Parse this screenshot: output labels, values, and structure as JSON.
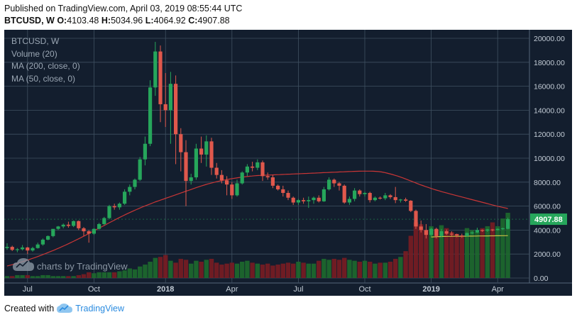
{
  "header": {
    "published": "Published on TradingView.com, April 03, 2019 08:55:44 UTC",
    "symbol": "BTCUSD, W",
    "o_label": "O:",
    "o_value": "4103.48",
    "h_label": "H:",
    "h_value": "5034.96",
    "l_label": "L:",
    "l_value": "4064.92",
    "c_label": "C:",
    "c_value": "4907.88"
  },
  "legend": {
    "symbol": "BTCUSD, W",
    "volume": "Volume (20)",
    "ma200": "MA (200, close, 0)",
    "ma50": "MA (50, close, 0)"
  },
  "watermark": "charts by TradingView",
  "footer": {
    "created_with": "Created with",
    "brand": "TradingView"
  },
  "colors": {
    "background": "#131e2e",
    "up": "#26a65b",
    "down": "#e0584c",
    "volume_up": "#1e6a2e",
    "volume_down": "#7a1c22",
    "ma200": "#c93636",
    "ma50": "#c9c046",
    "grid": "#3f5061",
    "price_tag": "#26a65b"
  },
  "chart_data": {
    "type": "candlestick",
    "interval": "weekly",
    "price_label": "4907.88",
    "y_ticks": [
      "20000.00",
      "18000.00",
      "16000.00",
      "14000.00",
      "12000.00",
      "10000.00",
      "8000.00",
      "6000.00",
      "4000.00",
      "2000.00",
      "0.00"
    ],
    "x_ticks": [
      "Jul",
      "Oct",
      "2018",
      "Apr",
      "Jul",
      "Oct",
      "2019",
      "Apr"
    ],
    "ylim": [
      0,
      20000
    ],
    "grid": true,
    "candles": [
      [
        2500,
        2900,
        2350,
        2600
      ],
      [
        2600,
        2700,
        2250,
        2350
      ],
      [
        2350,
        2500,
        2150,
        2400
      ],
      [
        2400,
        2750,
        2300,
        2550
      ],
      [
        2550,
        2600,
        2000,
        2300
      ],
      [
        2300,
        2600,
        2200,
        2500
      ],
      [
        2500,
        2950,
        2450,
        2800
      ],
      [
        2800,
        3300,
        2700,
        3200
      ],
      [
        3200,
        3550,
        3150,
        3500
      ],
      [
        3500,
        4000,
        3400,
        4100
      ],
      [
        4100,
        4350,
        4000,
        4300
      ],
      [
        4300,
        4550,
        4150,
        4450
      ],
      [
        4450,
        4700,
        4200,
        4350
      ],
      [
        4350,
        4800,
        4250,
        4750
      ],
      [
        4750,
        4800,
        4000,
        4150
      ],
      [
        4150,
        4250,
        3500,
        3900
      ],
      [
        3900,
        4000,
        2950,
        3700
      ],
      [
        3700,
        4150,
        3600,
        4100
      ],
      [
        4100,
        4600,
        4050,
        4500
      ],
      [
        4500,
        5100,
        4400,
        5000
      ],
      [
        5000,
        6100,
        4900,
        6000
      ],
      [
        6000,
        6200,
        5700,
        5900
      ],
      [
        5900,
        6300,
        5700,
        6200
      ],
      [
        6200,
        7400,
        6100,
        7200
      ],
      [
        7200,
        7800,
        6900,
        7600
      ],
      [
        7600,
        8300,
        7400,
        8200
      ],
      [
        8200,
        10100,
        8100,
        9900
      ],
      [
        9900,
        11800,
        9400,
        11200
      ],
      [
        11200,
        16500,
        11000,
        15900
      ],
      [
        15900,
        19700,
        15200,
        18900
      ],
      [
        18900,
        19400,
        13000,
        14500
      ],
      [
        14500,
        17100,
        12600,
        14000
      ],
      [
        14000,
        17200,
        11200,
        16200
      ],
      [
        16200,
        16900,
        9500,
        12000
      ],
      [
        12000,
        12500,
        8900,
        10500
      ],
      [
        10500,
        11500,
        6000,
        8100
      ],
      [
        8100,
        8700,
        7800,
        8400
      ],
      [
        8400,
        11200,
        8200,
        10800
      ],
      [
        10800,
        11800,
        9600,
        10300
      ],
      [
        10300,
        11900,
        9300,
        11400
      ],
      [
        11400,
        11700,
        8600,
        9200
      ],
      [
        9200,
        9600,
        8300,
        8600
      ],
      [
        8600,
        9000,
        7900,
        8150
      ],
      [
        8150,
        8500,
        6900,
        7800
      ],
      [
        7800,
        8000,
        6600,
        6900
      ],
      [
        6900,
        8200,
        6800,
        7900
      ],
      [
        7900,
        8900,
        7800,
        8800
      ],
      [
        8800,
        9500,
        8500,
        9300
      ],
      [
        9300,
        9700,
        8900,
        9200
      ],
      [
        9200,
        9900,
        9000,
        9650
      ],
      [
        9650,
        9800,
        8100,
        8500
      ],
      [
        8500,
        8800,
        8200,
        8400
      ],
      [
        8400,
        8600,
        7500,
        7700
      ],
      [
        7700,
        7800,
        7300,
        7400
      ],
      [
        7400,
        7700,
        6800,
        7100
      ],
      [
        7100,
        7300,
        6500,
        6700
      ],
      [
        6700,
        6800,
        6100,
        6300
      ],
      [
        6300,
        6600,
        6100,
        6500
      ],
      [
        6500,
        6700,
        6200,
        6400
      ],
      [
        6400,
        6800,
        5850,
        6500
      ],
      [
        6500,
        6800,
        6200,
        6700
      ],
      [
        6700,
        6900,
        6300,
        6400
      ],
      [
        6400,
        7600,
        6350,
        7400
      ],
      [
        7400,
        8400,
        7300,
        8200
      ],
      [
        8200,
        8300,
        7600,
        7900
      ],
      [
        7900,
        8000,
        7300,
        7700
      ],
      [
        7700,
        7800,
        6200,
        6300
      ],
      [
        6300,
        6800,
        6100,
        6600
      ],
      [
        6600,
        7500,
        6400,
        7300
      ],
      [
        7300,
        7400,
        6800,
        7000
      ],
      [
        7000,
        7200,
        6800,
        7100
      ],
      [
        7100,
        7200,
        6300,
        6500
      ],
      [
        6500,
        6800,
        6400,
        6700
      ],
      [
        6700,
        6800,
        6550,
        6650
      ],
      [
        6650,
        7100,
        6500,
        6900
      ],
      [
        6900,
        7000,
        6600,
        6750
      ],
      [
        6750,
        7600,
        6250,
        6500
      ],
      [
        6500,
        6600,
        6300,
        6550
      ],
      [
        6550,
        6700,
        6350,
        6450
      ],
      [
        6450,
        6500,
        5500,
        5600
      ],
      [
        5600,
        5700,
        4100,
        4300
      ],
      [
        4300,
        4800,
        3800,
        4000
      ],
      [
        4000,
        4500,
        3300,
        3600
      ],
      [
        3600,
        4200,
        3450,
        4100
      ],
      [
        4100,
        4200,
        3300,
        3500
      ],
      [
        3500,
        4100,
        3400,
        3900
      ],
      [
        3900,
        4050,
        3600,
        3700
      ],
      [
        3700,
        3900,
        3500,
        3650
      ],
      [
        3650,
        3700,
        3400,
        3550
      ],
      [
        3550,
        3700,
        3350,
        3500
      ],
      [
        3500,
        3800,
        3450,
        3750
      ],
      [
        3750,
        3900,
        3650,
        3800
      ],
      [
        3800,
        4200,
        3750,
        4000
      ],
      [
        4000,
        4050,
        3850,
        3950
      ],
      [
        3950,
        4100,
        3850,
        4050
      ],
      [
        4050,
        4100,
        3900,
        4000
      ],
      [
        4000,
        4150,
        3950,
        4100
      ],
      [
        4100,
        4200,
        4000,
        4150
      ],
      [
        4103.48,
        5034.96,
        4064.92,
        4907.88
      ]
    ],
    "volume": [
      2,
      2,
      3,
      3,
      3,
      2,
      2,
      3,
      3,
      2,
      2,
      2,
      2,
      2,
      3,
      4,
      6,
      5,
      6,
      6,
      6,
      6,
      7,
      8,
      10,
      9,
      12,
      14,
      17,
      21,
      22,
      24,
      18,
      16,
      20,
      19,
      15,
      18,
      17,
      19,
      20,
      16,
      14,
      15,
      16,
      15,
      17,
      18,
      16,
      15,
      14,
      15,
      13,
      14,
      15,
      16,
      15,
      17,
      16,
      15,
      15,
      18,
      20,
      19,
      20,
      19,
      21,
      19,
      18,
      17,
      18,
      17,
      15,
      16,
      16,
      17,
      20,
      22,
      28,
      44,
      58,
      56,
      50,
      54,
      50,
      55,
      52,
      48,
      46,
      44,
      52,
      50,
      48,
      52,
      54,
      58,
      54,
      62,
      68
    ],
    "ma200": [
      1000,
      1060,
      1120,
      1180,
      1250,
      1320,
      1390,
      1460,
      1540,
      1620,
      1700,
      1780,
      1870,
      1960,
      2050,
      2140,
      2230,
      2320,
      2420,
      2520,
      2620,
      2720,
      2830,
      2940,
      3050,
      3160,
      3270,
      3390,
      3510,
      3630,
      3750,
      3870,
      3990,
      4110,
      4230,
      4350,
      4470,
      4590,
      4710,
      4830,
      4950,
      5070,
      5180,
      5290,
      5400,
      5510,
      5610,
      5710,
      5810,
      5910,
      6000,
      6090,
      6180,
      6270,
      6360,
      6440,
      6520,
      6600,
      6680,
      6760,
      6840,
      6920,
      7000,
      7080,
      7160,
      7240,
      7320,
      7400,
      7480,
      7560,
      7640,
      7710,
      7780,
      7850,
      7910,
      7970,
      8030,
      8080,
      8130,
      8180,
      8220,
      8260,
      8300,
      8340,
      8370,
      8400,
      8430,
      8460,
      8490,
      8510,
      8530,
      8550,
      8560,
      8570,
      8580,
      8590,
      8600,
      8610,
      8620,
      8630,
      8640,
      8650,
      8660,
      8670,
      8680,
      8690,
      8700,
      8710,
      8720,
      8730,
      8740,
      8750,
      8760,
      8770,
      8780,
      8790,
      8800,
      8810,
      8820,
      8830,
      8840,
      8850,
      8860,
      8870,
      8880,
      8890,
      8900,
      8905,
      8910,
      8915,
      8918,
      8918,
      8915,
      8910,
      8900,
      8880,
      8850,
      8810,
      8760,
      8700,
      8640,
      8570,
      8500,
      8420,
      8340,
      8250,
      8160,
      8070,
      7980,
      7890,
      7800,
      7720,
      7640,
      7560,
      7480,
      7410,
      7340,
      7270,
      7200,
      7140,
      7080,
      7020,
      6960,
      6900,
      6840,
      6780,
      6720,
      6660,
      6600,
      6540,
      6480,
      6420,
      6360,
      6300,
      6240,
      6180,
      6120,
      6060,
      6000,
      5950,
      5900,
      5850,
      5800
    ],
    "ma50": [
      3420,
      3430,
      3440,
      3450,
      3455,
      3460,
      3465,
      3470,
      3472,
      3474,
      3476,
      3478,
      3480,
      3482,
      3485,
      3488,
      3490,
      3492,
      3494,
      3496,
      3498,
      3500,
      3502,
      3504,
      3506,
      3508,
      3510,
      3512,
      3514,
      3516,
      3518,
      3520,
      3522,
      3524,
      3526,
      3528,
      3530,
      3532,
      3534,
      3536
    ]
  }
}
